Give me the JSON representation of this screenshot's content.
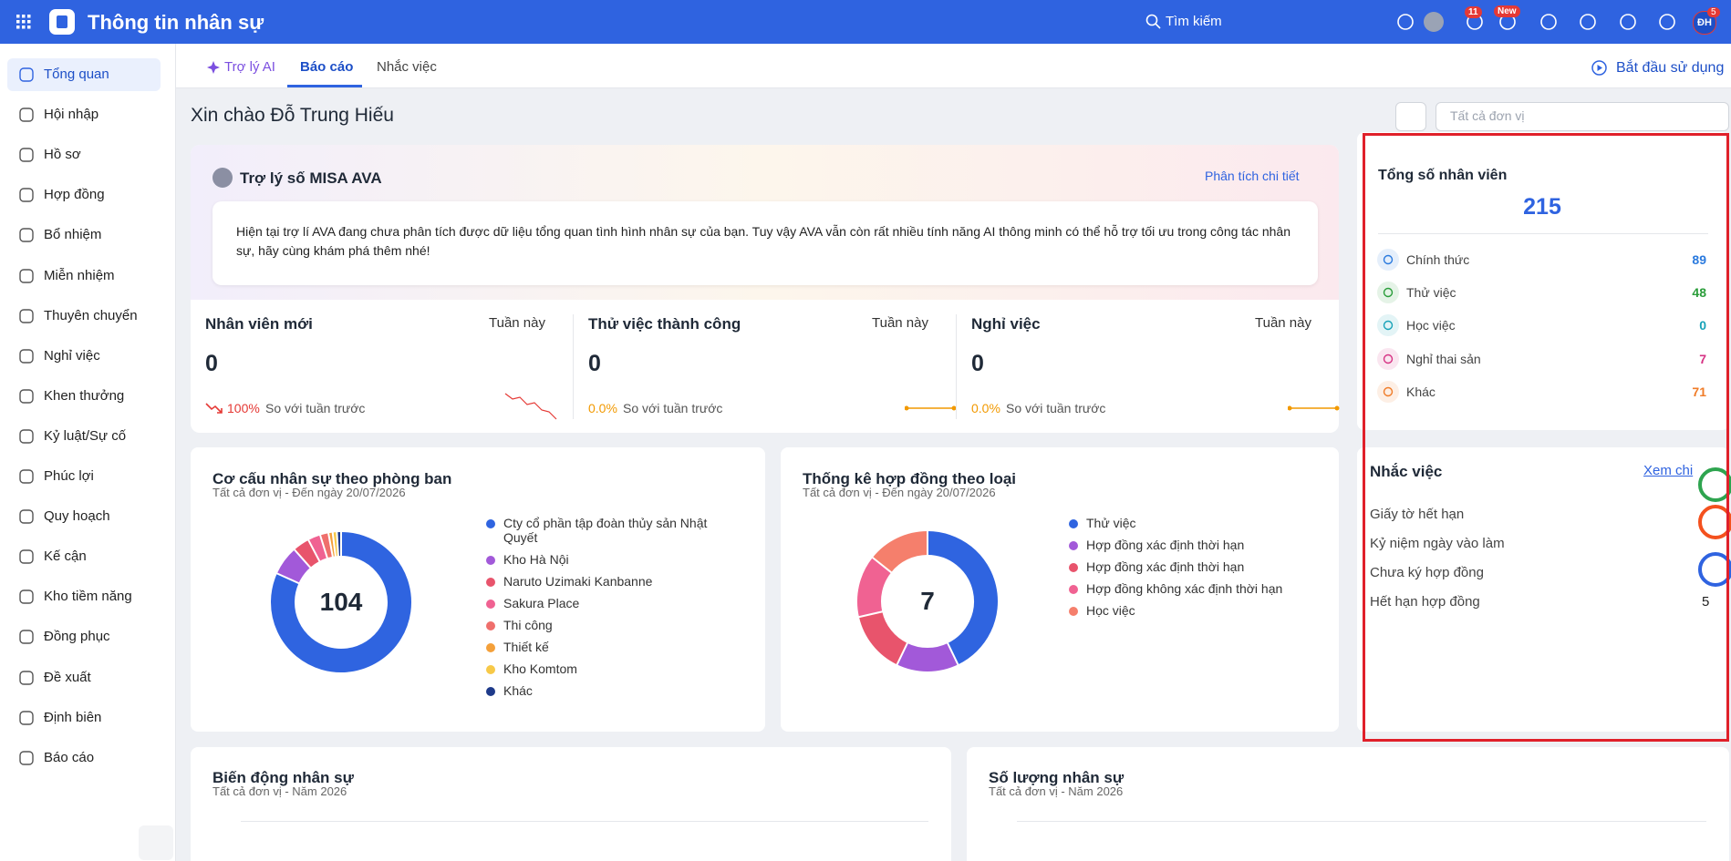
{
  "header": {
    "app_title": "Thông tin nhân sự",
    "search_placeholder": "Tìm kiếm",
    "badges": {
      "announcements": "11",
      "new": "New",
      "account": "5"
    },
    "avatar": "ĐH"
  },
  "sidebar": {
    "items": [
      "Tổng quan",
      "Hội nhập",
      "Hồ sơ",
      "Hợp đồng",
      "Bổ nhiệm",
      "Miễn nhiệm",
      "Thuyên chuyển",
      "Nghỉ việc",
      "Khen thưởng",
      "Kỷ luật/Sự cố",
      "Phúc lợi",
      "Quy hoạch",
      "Kế cận",
      "Kho tiềm năng",
      "Đồng phục",
      "Đề xuất",
      "Định biên",
      "Báo cáo"
    ],
    "active": 0
  },
  "tabs": {
    "items": [
      "Trợ lý AI",
      "Báo cáo",
      "Nhắc việc"
    ],
    "active": 1
  },
  "start_button": "Bắt đầu sử dụng",
  "greeting": "Xin chào Đỗ Trung Hiếu",
  "unit_filter": "Tất cả đơn vị",
  "ava": {
    "title": "Trợ lý số MISA AVA",
    "link": "Phân tích chi tiết",
    "message": "Hiện tại trợ lí AVA đang chưa phân tích được dữ liệu tổng quan tình hình nhân sự của bạn. Tuy vậy AVA vẫn còn rất nhiều tính năng AI thông minh có thể hỗ trợ tối ưu trong công tác nhân sự, hãy cùng khám phá thêm nhé!"
  },
  "stats": [
    {
      "title": "Nhân viên mới",
      "period": "Tuần này",
      "value": 0,
      "change": "100%",
      "change_color": "#e53935",
      "compare": "So với tuần trước"
    },
    {
      "title": "Thử việc thành công",
      "period": "Tuần này",
      "value": 0,
      "change": "0.0%",
      "change_color": "#f29900",
      "compare": "So với tuần trước"
    },
    {
      "title": "Nghỉ việc",
      "period": "Tuần này",
      "value": 0,
      "change": "0.0%",
      "change_color": "#f29900",
      "compare": "So với tuần trước"
    }
  ],
  "total_staff": {
    "title": "Tổng số nhân viên",
    "total": 215,
    "items": [
      {
        "label": "Chính thức",
        "value": 89,
        "color": "#2a7ade"
      },
      {
        "label": "Thử việc",
        "value": 48,
        "color": "#2a9d3a"
      },
      {
        "label": "Học việc",
        "value": 0,
        "color": "#17a2b8"
      },
      {
        "label": "Nghỉ thai sản",
        "value": 7,
        "color": "#d63384"
      },
      {
        "label": "Khác",
        "value": 71,
        "color": "#f07c28"
      }
    ]
  },
  "reminders": {
    "title": "Nhắc việc",
    "link": "Xem chi",
    "items": [
      {
        "label": "Giấy tờ hết hạn"
      },
      {
        "label": "Kỷ niệm ngày vào làm"
      },
      {
        "label": "Chưa ký hợp đồng"
      },
      {
        "label": "Hết hạn hợp đồng",
        "value": 5
      }
    ]
  },
  "dept_chart": {
    "type": "donut",
    "title": "Cơ cấu nhân sự theo phòng ban",
    "subtitle": "Tất cả đơn vị - Đến ngày 20/07/2026",
    "center": 104,
    "categories": [
      "Cty cổ phần tập đoàn thủy sản Nhật Quyết",
      "Kho Hà Nội",
      "Naruto Uzimaki Kanbanne",
      "Sakura Place",
      "Thi công",
      "Thiết kế",
      "Kho Komtom",
      "Khác"
    ],
    "values": [
      85,
      7,
      4,
      3,
      2,
      1,
      1,
      1
    ],
    "colors": [
      "#2f64e0",
      "#a259d9",
      "#e8546c",
      "#f06292",
      "#ef6f6c",
      "#f4a03a",
      "#f7c948",
      "#1e3a8a"
    ]
  },
  "contract_chart": {
    "type": "donut",
    "title": "Thống kê hợp đồng theo loại",
    "subtitle": "Tất cả đơn vị - Đến ngày 20/07/2026",
    "center": 7,
    "categories": [
      "Thử việc",
      "Hợp đồng xác định thời hạn",
      "Hợp đồng xác định thời hạn",
      "Hợp đồng không xác định thời hạn",
      "Học việc"
    ],
    "values": [
      3,
      1,
      1,
      1,
      1
    ],
    "colors": [
      "#2f64e0",
      "#a259d9",
      "#e8546c",
      "#f06292",
      "#f57f6c"
    ]
  },
  "bottom_cards": [
    {
      "title": "Biến động nhân sự",
      "subtitle": "Tất cả đơn vị - Năm 2026"
    },
    {
      "title": "Số lượng nhân sự",
      "subtitle": "Tất cả đơn vị - Năm 2026"
    }
  ]
}
